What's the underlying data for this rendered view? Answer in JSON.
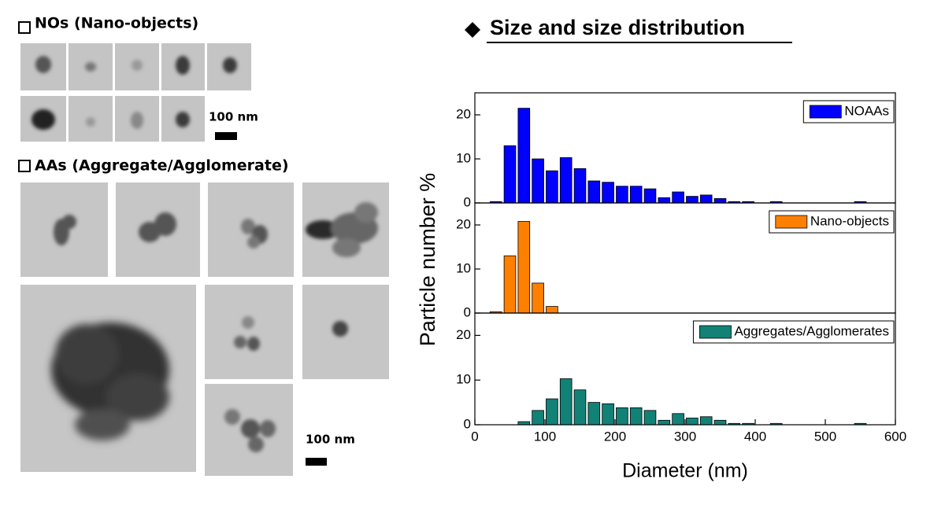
{
  "header": "Size and size distribution",
  "micrographs": {
    "nos_title": "NOs (Nano-objects)",
    "nos_scale": "100 nm",
    "aas_title": "AAs (Aggregate/Agglomerate)",
    "aas_scale": "100 nm"
  },
  "y_label": "Particle number %",
  "x_label": "Diameter (nm)",
  "chart_data": [
    {
      "type": "histogram",
      "bins": [
        20,
        40,
        60,
        80,
        100,
        120,
        140,
        160,
        180,
        200,
        220,
        240,
        260,
        280,
        300,
        320,
        340,
        360,
        380,
        400,
        420,
        440,
        460,
        480,
        500,
        520,
        540,
        560
      ],
      "series": [
        {
          "name": "NOAAs",
          "color": "#0000ff",
          "values": [
            0.3,
            13,
            21.5,
            10,
            7.3,
            10.3,
            7.8,
            5,
            4.7,
            3.8,
            3.8,
            3.2,
            1.2,
            2.5,
            1.5,
            1.8,
            1,
            0.3,
            0.3,
            0,
            0.3,
            0,
            0,
            0,
            0,
            0,
            0.3
          ]
        }
      ],
      "xlim": [
        0,
        600
      ],
      "ylim": [
        0,
        25
      ],
      "yticks": [
        0,
        10,
        20
      ]
    },
    {
      "type": "histogram",
      "bins": [
        20,
        40,
        60,
        80,
        100,
        120
      ],
      "series": [
        {
          "name": "Nano-objects",
          "color": "#ff8000",
          "values": [
            0.3,
            13,
            20.8,
            6.8,
            1.5
          ]
        }
      ],
      "xlim": [
        0,
        600
      ],
      "ylim": [
        0,
        25
      ],
      "yticks": [
        0,
        10,
        20
      ]
    },
    {
      "type": "histogram",
      "bins": [
        60,
        80,
        100,
        120,
        140,
        160,
        180,
        200,
        220,
        240,
        260,
        280,
        300,
        320,
        340,
        360,
        380,
        400,
        420,
        440,
        460,
        480,
        500,
        520,
        540,
        560
      ],
      "series": [
        {
          "name": "Aggregates/Agglomerates",
          "color": "#128277",
          "values": [
            0.7,
            3.2,
            5.8,
            10.3,
            7.8,
            5,
            4.7,
            3.8,
            3.8,
            3.2,
            1,
            2.5,
            1.5,
            1.8,
            1,
            0.3,
            0.3,
            0,
            0.3,
            0,
            0,
            0,
            0,
            0,
            0.3
          ]
        }
      ],
      "xlim": [
        0,
        600
      ],
      "ylim": [
        0,
        25
      ],
      "yticks": [
        0,
        10,
        20
      ],
      "xticks": [
        0,
        100,
        200,
        300,
        400,
        500,
        600
      ]
    }
  ]
}
